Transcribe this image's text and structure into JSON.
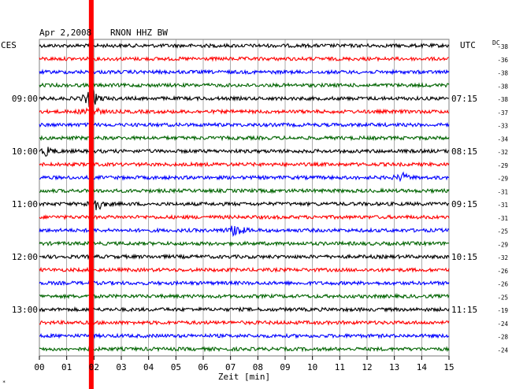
{
  "header": {
    "date": "Apr 2,2008",
    "station": "RNON HHZ BW",
    "left_zone": "CES",
    "right_zone": "UTC",
    "dc_label": "DC"
  },
  "chart_data": {
    "type": "line",
    "title": "Apr 2,2008   RNON HHZ BW",
    "xlabel": "Zeit [min]",
    "x_ticks": [
      "00",
      "01",
      "02",
      "03",
      "04",
      "05",
      "06",
      "07",
      "08",
      "09",
      "10",
      "11",
      "12",
      "13",
      "14",
      "15"
    ],
    "xlim": [
      0,
      15
    ],
    "grid": true,
    "trace_colors": [
      "#000000",
      "#ff0000",
      "#0000ff",
      "#006400"
    ],
    "left_time_labels": [
      {
        "row": 4,
        "label": "09:00"
      },
      {
        "row": 8,
        "label": "10:00"
      },
      {
        "row": 12,
        "label": "11:00"
      },
      {
        "row": 16,
        "label": "12:00"
      },
      {
        "row": 20,
        "label": "13:00"
      }
    ],
    "right_time_labels": [
      {
        "row": 4,
        "label": "07:15"
      },
      {
        "row": 8,
        "label": "08:15"
      },
      {
        "row": 12,
        "label": "09:15"
      },
      {
        "row": 16,
        "label": "10:15"
      },
      {
        "row": 20,
        "label": "11:15"
      }
    ],
    "dc_offsets": [
      -38,
      -36,
      -38,
      -38,
      -38,
      -37,
      -33,
      -34,
      -32,
      -29,
      -29,
      -31,
      -31,
      -31,
      -25,
      -29,
      -32,
      -26,
      -26,
      -25,
      -19,
      -24,
      -28,
      -24
    ],
    "events": [
      {
        "row": 4,
        "minute": 1.9,
        "amplitude": 14
      },
      {
        "row": 5,
        "minute": 1.9,
        "amplitude": 10
      },
      {
        "row": 8,
        "minute": 0.3,
        "amplitude": 6
      },
      {
        "row": 12,
        "minute": 2.1,
        "amplitude": 9
      },
      {
        "row": 14,
        "minute": 7.2,
        "amplitude": 10
      },
      {
        "row": 10,
        "minute": 13.3,
        "amplitude": 5
      }
    ],
    "marker": {
      "minute": 1.9,
      "color": "#ff0000"
    }
  },
  "footer": {
    "corner_mark": "*"
  }
}
